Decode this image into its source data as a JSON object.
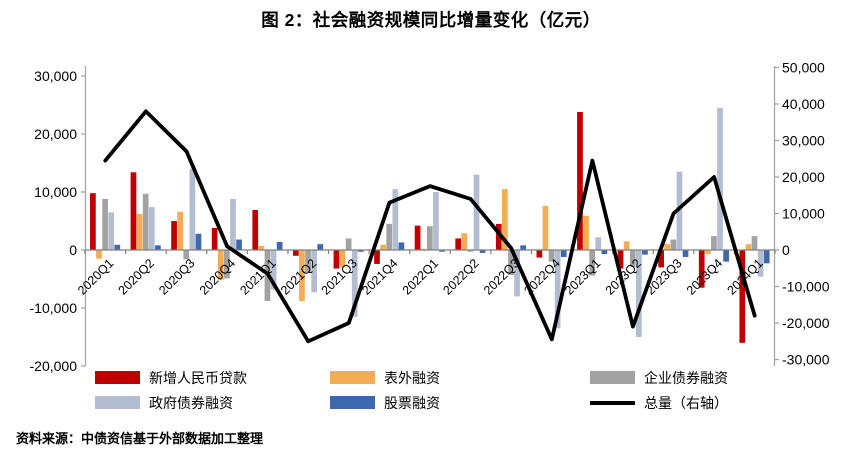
{
  "title": "图 2：社会融资规模同比增量变化（亿元）",
  "source": "资料来源：中债资信基于外部数据加工整理",
  "chart_data": {
    "type": "bar",
    "subtype": "grouped-bars-with-line-overlay",
    "title": "图 2：社会融资规模同比增量变化（亿元）",
    "categories": [
      "2020Q1",
      "2020Q2",
      "2020Q3",
      "2020Q4",
      "2021Q1",
      "2021Q2",
      "2021Q3",
      "2021Q4",
      "2022Q1",
      "2022Q2",
      "2022Q3",
      "2022Q4",
      "2023Q1",
      "2023Q2",
      "2023Q3",
      "2023Q4",
      "2024Q1"
    ],
    "series": [
      {
        "key": "new-rmb-loans",
        "name": "新增人民币贷款",
        "type": "bar",
        "axis": "left",
        "color": "#C00000",
        "values": [
          9800,
          13400,
          5000,
          3800,
          6900,
          -1000,
          -3200,
          -2400,
          4200,
          2000,
          4500,
          -1300,
          23800,
          -3200,
          -3000,
          -6500,
          -16000
        ]
      },
      {
        "key": "off-balance-financing",
        "name": "表外融资",
        "type": "bar",
        "axis": "left",
        "color": "#F4AC55",
        "values": [
          -1500,
          6200,
          6600,
          -5200,
          700,
          -8800,
          -3000,
          900,
          200,
          2900,
          10500,
          7600,
          5900,
          1500,
          1000,
          -700,
          1000
        ]
      },
      {
        "key": "corporate-bond-financing",
        "name": "企业债券融资",
        "type": "bar",
        "axis": "left",
        "color": "#A2A2A2",
        "values": [
          8800,
          9700,
          -1600,
          -4900,
          -8800,
          -3800,
          2000,
          4500,
          4100,
          -300,
          -4300,
          -2000,
          -4400,
          -2900,
          1800,
          2400,
          2400
        ]
      },
      {
        "key": "government-bond-financing",
        "name": "政府债券融资",
        "type": "bar",
        "axis": "left",
        "color": "#B3BDD1",
        "values": [
          6500,
          7400,
          14000,
          8800,
          -6800,
          -7300,
          -11500,
          10500,
          10000,
          13000,
          -8000,
          -13500,
          2200,
          -15000,
          13500,
          24500,
          -4600
        ]
      },
      {
        "key": "equity-financing",
        "name": "股票融资",
        "type": "bar",
        "axis": "left",
        "color": "#3D68B0",
        "values": [
          900,
          800,
          2800,
          1800,
          1400,
          1000,
          -300,
          1300,
          -300,
          -500,
          800,
          -1200,
          -700,
          -800,
          -1200,
          -2000,
          -2300
        ]
      },
      {
        "key": "total-right-axis",
        "name": "总量（右轴）",
        "type": "line",
        "axis": "right",
        "color": "#000000",
        "values": [
          24500,
          38000,
          27000,
          1000,
          -6500,
          -25000,
          -20000,
          13000,
          17500,
          14000,
          500,
          -24500,
          24500,
          -21000,
          10000,
          20000,
          -18000
        ]
      }
    ],
    "left_axis": {
      "min": -20000,
      "max": 30000,
      "step": 10000,
      "ticks": [
        30000,
        20000,
        10000,
        0,
        -10000,
        -20000
      ]
    },
    "right_axis": {
      "min": -30000,
      "max": 50000,
      "step": 10000,
      "ticks": [
        50000,
        40000,
        30000,
        20000,
        10000,
        0,
        -10000,
        -20000,
        -30000
      ]
    },
    "grid": false,
    "legend_position": "bottom"
  },
  "style": {
    "axis_line_color": "#A6A6A6",
    "zero_line_color": "#808080",
    "tick_label_color": "#000000",
    "line_width": 3.8
  }
}
